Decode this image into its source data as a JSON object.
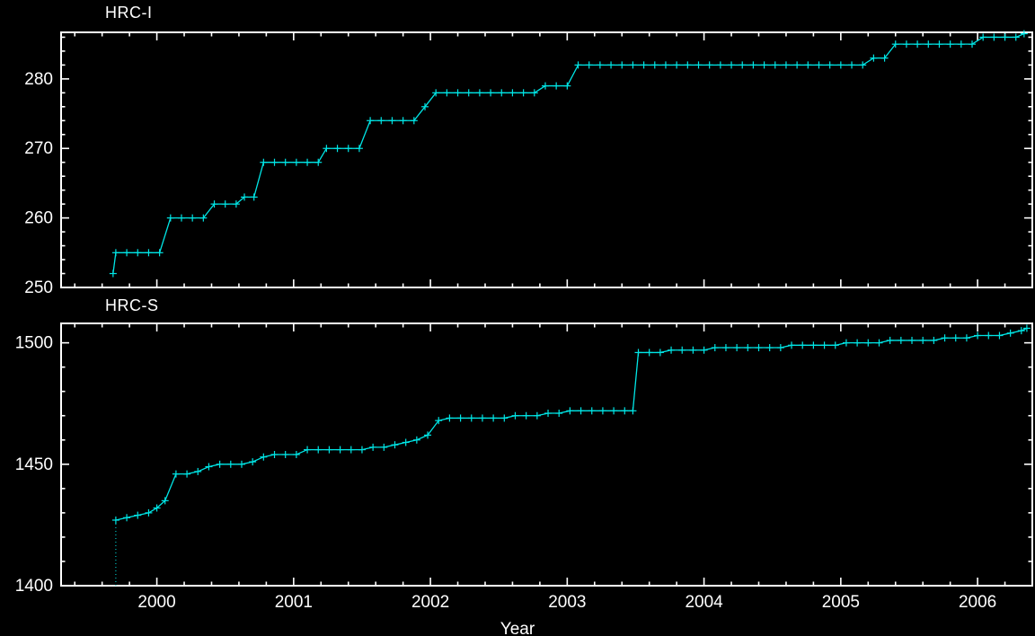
{
  "page": {
    "background": "#000000",
    "axis_color": "#ffffff",
    "text_color": "#ffffff",
    "series_color": "#00e6e6"
  },
  "chart_data": [
    {
      "type": "line",
      "title": "HRC-I",
      "xlabel": "",
      "ylabel": "",
      "x_range": [
        1999.3,
        2006.4
      ],
      "y_range": [
        250,
        286.7
      ],
      "x_major_ticks": [
        2000,
        2001,
        2002,
        2003,
        2004,
        2005,
        2006
      ],
      "x_minor_step": 0.2,
      "y_major_ticks": [
        250,
        260,
        270,
        280
      ],
      "y_minor_step": 2,
      "show_x_tick_labels": false,
      "grid": false,
      "legend": "none",
      "series": [
        {
          "name": "HRC-I",
          "color": "#00e6e6",
          "marker": "plus",
          "points": [
            [
              1999.68,
              252
            ],
            [
              1999.7,
              255
            ],
            [
              1999.78,
              255
            ],
            [
              1999.86,
              255
            ],
            [
              1999.94,
              255
            ],
            [
              2000.02,
              255
            ],
            [
              2000.1,
              260
            ],
            [
              2000.18,
              260
            ],
            [
              2000.26,
              260
            ],
            [
              2000.34,
              260
            ],
            [
              2000.42,
              262
            ],
            [
              2000.5,
              262
            ],
            [
              2000.58,
              262
            ],
            [
              2000.64,
              263
            ],
            [
              2000.71,
              263
            ],
            [
              2000.78,
              268
            ],
            [
              2000.86,
              268
            ],
            [
              2000.94,
              268
            ],
            [
              2001.02,
              268
            ],
            [
              2001.1,
              268
            ],
            [
              2001.18,
              268
            ],
            [
              2001.24,
              270
            ],
            [
              2001.32,
              270
            ],
            [
              2001.4,
              270
            ],
            [
              2001.48,
              270
            ],
            [
              2001.56,
              274
            ],
            [
              2001.64,
              274
            ],
            [
              2001.72,
              274
            ],
            [
              2001.8,
              274
            ],
            [
              2001.88,
              274
            ],
            [
              2001.96,
              276
            ],
            [
              2002.04,
              278
            ],
            [
              2002.12,
              278
            ],
            [
              2002.2,
              278
            ],
            [
              2002.28,
              278
            ],
            [
              2002.36,
              278
            ],
            [
              2002.44,
              278
            ],
            [
              2002.52,
              278
            ],
            [
              2002.6,
              278
            ],
            [
              2002.68,
              278
            ],
            [
              2002.76,
              278
            ],
            [
              2002.84,
              279
            ],
            [
              2002.92,
              279
            ],
            [
              2003.0,
              279
            ],
            [
              2003.08,
              282
            ],
            [
              2003.16,
              282
            ],
            [
              2003.24,
              282
            ],
            [
              2003.32,
              282
            ],
            [
              2003.4,
              282
            ],
            [
              2003.48,
              282
            ],
            [
              2003.56,
              282
            ],
            [
              2003.64,
              282
            ],
            [
              2003.72,
              282
            ],
            [
              2003.8,
              282
            ],
            [
              2003.88,
              282
            ],
            [
              2003.96,
              282
            ],
            [
              2004.04,
              282
            ],
            [
              2004.12,
              282
            ],
            [
              2004.2,
              282
            ],
            [
              2004.28,
              282
            ],
            [
              2004.36,
              282
            ],
            [
              2004.44,
              282
            ],
            [
              2004.52,
              282
            ],
            [
              2004.6,
              282
            ],
            [
              2004.68,
              282
            ],
            [
              2004.76,
              282
            ],
            [
              2004.84,
              282
            ],
            [
              2004.92,
              282
            ],
            [
              2005.0,
              282
            ],
            [
              2005.08,
              282
            ],
            [
              2005.16,
              282
            ],
            [
              2005.24,
              283
            ],
            [
              2005.32,
              283
            ],
            [
              2005.4,
              285
            ],
            [
              2005.48,
              285
            ],
            [
              2005.56,
              285
            ],
            [
              2005.64,
              285
            ],
            [
              2005.72,
              285
            ],
            [
              2005.8,
              285
            ],
            [
              2005.88,
              285
            ],
            [
              2005.96,
              285
            ],
            [
              2006.04,
              286
            ],
            [
              2006.12,
              286
            ],
            [
              2006.2,
              286
            ],
            [
              2006.28,
              286
            ],
            [
              2006.34,
              286.5
            ]
          ]
        }
      ]
    },
    {
      "type": "line",
      "title": "HRC-S",
      "xlabel": "Year",
      "ylabel": "",
      "x_range": [
        1999.3,
        2006.4
      ],
      "y_range": [
        1400,
        1508
      ],
      "x_major_ticks": [
        2000,
        2001,
        2002,
        2003,
        2004,
        2005,
        2006
      ],
      "x_minor_step": 0.2,
      "y_major_ticks": [
        1400,
        1450,
        1500
      ],
      "y_minor_step": 10,
      "show_x_tick_labels": true,
      "grid": false,
      "legend": "none",
      "start_drop": {
        "year": 1999.7,
        "value_from": 1400,
        "value_to": 1427
      },
      "series": [
        {
          "name": "HRC-S",
          "color": "#00e6e6",
          "marker": "plus",
          "points": [
            [
              1999.7,
              1427
            ],
            [
              1999.78,
              1428
            ],
            [
              1999.86,
              1429
            ],
            [
              1999.94,
              1430
            ],
            [
              2000.0,
              1432
            ],
            [
              2000.06,
              1435
            ],
            [
              2000.14,
              1446
            ],
            [
              2000.22,
              1446
            ],
            [
              2000.3,
              1447
            ],
            [
              2000.38,
              1449
            ],
            [
              2000.46,
              1450
            ],
            [
              2000.54,
              1450
            ],
            [
              2000.62,
              1450
            ],
            [
              2000.7,
              1451
            ],
            [
              2000.78,
              1453
            ],
            [
              2000.86,
              1454
            ],
            [
              2000.94,
              1454
            ],
            [
              2001.02,
              1454
            ],
            [
              2001.1,
              1456
            ],
            [
              2001.18,
              1456
            ],
            [
              2001.26,
              1456
            ],
            [
              2001.34,
              1456
            ],
            [
              2001.42,
              1456
            ],
            [
              2001.5,
              1456
            ],
            [
              2001.58,
              1457
            ],
            [
              2001.66,
              1457
            ],
            [
              2001.74,
              1458
            ],
            [
              2001.82,
              1459
            ],
            [
              2001.9,
              1460
            ],
            [
              2001.98,
              1462
            ],
            [
              2002.06,
              1468
            ],
            [
              2002.14,
              1469
            ],
            [
              2002.22,
              1469
            ],
            [
              2002.3,
              1469
            ],
            [
              2002.38,
              1469
            ],
            [
              2002.46,
              1469
            ],
            [
              2002.54,
              1469
            ],
            [
              2002.62,
              1470
            ],
            [
              2002.7,
              1470
            ],
            [
              2002.78,
              1470
            ],
            [
              2002.86,
              1471
            ],
            [
              2002.94,
              1471
            ],
            [
              2003.02,
              1472
            ],
            [
              2003.1,
              1472
            ],
            [
              2003.18,
              1472
            ],
            [
              2003.26,
              1472
            ],
            [
              2003.34,
              1472
            ],
            [
              2003.42,
              1472
            ],
            [
              2003.48,
              1472
            ],
            [
              2003.52,
              1496
            ],
            [
              2003.6,
              1496
            ],
            [
              2003.68,
              1496
            ],
            [
              2003.76,
              1497
            ],
            [
              2003.84,
              1497
            ],
            [
              2003.92,
              1497
            ],
            [
              2004.0,
              1497
            ],
            [
              2004.08,
              1498
            ],
            [
              2004.16,
              1498
            ],
            [
              2004.24,
              1498
            ],
            [
              2004.32,
              1498
            ],
            [
              2004.4,
              1498
            ],
            [
              2004.48,
              1498
            ],
            [
              2004.56,
              1498
            ],
            [
              2004.64,
              1499
            ],
            [
              2004.72,
              1499
            ],
            [
              2004.8,
              1499
            ],
            [
              2004.88,
              1499
            ],
            [
              2004.96,
              1499
            ],
            [
              2005.04,
              1500
            ],
            [
              2005.12,
              1500
            ],
            [
              2005.2,
              1500
            ],
            [
              2005.28,
              1500
            ],
            [
              2005.36,
              1501
            ],
            [
              2005.44,
              1501
            ],
            [
              2005.52,
              1501
            ],
            [
              2005.6,
              1501
            ],
            [
              2005.68,
              1501
            ],
            [
              2005.76,
              1502
            ],
            [
              2005.84,
              1502
            ],
            [
              2005.92,
              1502
            ],
            [
              2006.0,
              1503
            ],
            [
              2006.08,
              1503
            ],
            [
              2006.16,
              1503
            ],
            [
              2006.24,
              1504
            ],
            [
              2006.32,
              1505
            ],
            [
              2006.36,
              1506
            ]
          ]
        }
      ]
    }
  ]
}
